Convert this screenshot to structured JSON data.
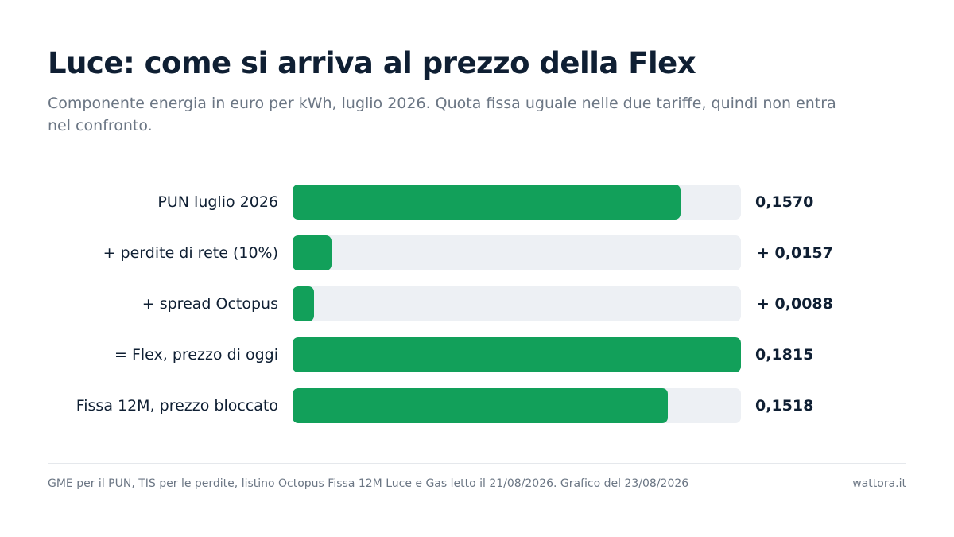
{
  "header": {
    "title": "Luce: come si arriva al prezzo della Flex",
    "subtitle": "Componente energia in euro per kWh, luglio 2026. Quota fissa uguale nelle due tariffe, quindi non entra nel confronto."
  },
  "chart_data": {
    "type": "bar",
    "orientation": "horizontal",
    "title": "Luce: come si arriva al prezzo della Flex",
    "subtitle": "Componente energia in euro per kWh, luglio 2026. Quota fissa uguale nelle due tariffe, quindi non entra nel confronto.",
    "categories": [
      "PUN luglio 2026",
      "+ perdite di rete (10%)",
      "+ spread Octopus",
      "= Flex, prezzo di oggi",
      "Fissa 12M, prezzo bloccato"
    ],
    "values": [
      0.157,
      0.0157,
      0.0088,
      0.1815,
      0.1518
    ],
    "value_labels": [
      "0,1570",
      "+ 0,0157",
      "+ 0,0088",
      "0,1815",
      "0,1518"
    ],
    "xlim": [
      0,
      0.1815
    ],
    "grid": false,
    "legend": "none",
    "bar_color": "#12a05a",
    "track_color": "#edf0f4"
  },
  "footer": {
    "source": "GME per il PUN, TIS per le perdite, listino Octopus Fissa 12M Luce e Gas letto il 21/08/2026. Grafico del 23/08/2026",
    "brand": "wattora.it"
  }
}
